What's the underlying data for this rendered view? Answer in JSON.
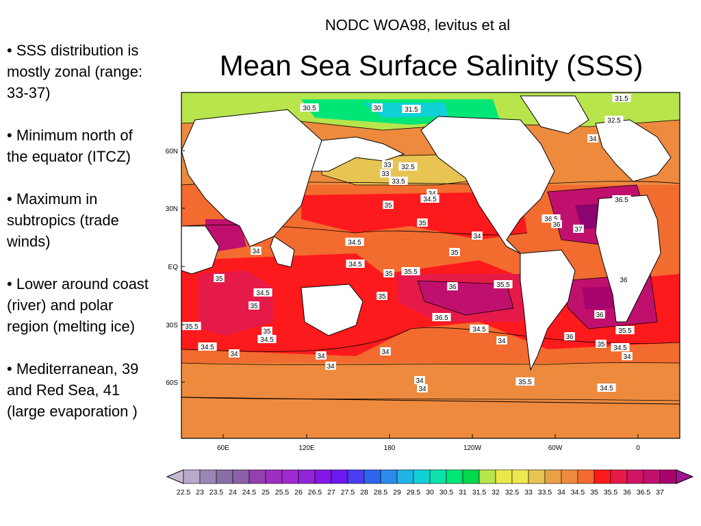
{
  "source": "NODC WOA98, levitus et al",
  "title": "Mean Sea Surface Salinity (SSS)",
  "bullets": [
    "• SSS distribution is mostly zonal (range: 33-37)",
    "• Minimum north of the equator (ITCZ)",
    "• Maximum in subtropics (trade winds)",
    "• Lower around coast (river) and polar region (melting ice)",
    " • Mediterranean, 39 and Red Sea, 41 (large evaporation )"
  ],
  "map": {
    "lat_ticks": [
      "60N",
      "30N",
      "EQ",
      "30S",
      "60S"
    ],
    "lon_ticks": [
      "60E",
      "120E",
      "180",
      "120W",
      "60W",
      "0"
    ],
    "contour_labels": [
      "31.5",
      "30.5",
      "30",
      "31.5",
      "32.5",
      "34",
      "33",
      "32.5",
      "33",
      "33.5",
      "34",
      "34.5",
      "35",
      "35",
      "34",
      "34.5",
      "35",
      "36.5",
      "36",
      "37",
      "36.5",
      "34",
      "34.5",
      "35",
      "35.5",
      "36",
      "35.5",
      "36",
      "35",
      "34.5",
      "35",
      "35",
      "36",
      "36.5",
      "35.5",
      "35.5",
      "35",
      "34.5",
      "34",
      "34.5",
      "34.5",
      "34",
      "36",
      "35",
      "34.5",
      "34",
      "34",
      "34",
      "34",
      "34",
      "34",
      "35.5",
      "34.5"
    ]
  },
  "colorbar": {
    "labels": [
      "22.5",
      "23",
      "23.5",
      "24",
      "24.5",
      "25",
      "25.5",
      "26",
      "26.5",
      "27",
      "27.5",
      "28",
      "28.5",
      "29",
      "29.5",
      "30",
      "30.5",
      "31",
      "31.5",
      "32",
      "32.5",
      "33",
      "33.5",
      "34",
      "34.5",
      "35",
      "35.5",
      "36",
      "36.5",
      "37"
    ],
    "colors": [
      "#b9a9c9",
      "#9c86b4",
      "#8a6ea6",
      "#8d5fa6",
      "#9440b0",
      "#9c2fc0",
      "#a02ad1",
      "#9126d9",
      "#8417e6",
      "#6a1aee",
      "#4b3df0",
      "#2f66ef",
      "#2c8bea",
      "#1fb4e4",
      "#10d1d6",
      "#0fe0ae",
      "#00e676",
      "#00d84a",
      "#b8e44c",
      "#e9e84b",
      "#ece84f",
      "#e8c452",
      "#e9a146",
      "#ee8a3e",
      "#f26b2f",
      "#fd1a1c",
      "#e51a48",
      "#d11562",
      "#c0106e",
      "#a8046e"
    ],
    "low_end_color": "#c6b9d4",
    "high_end_color": "#a01592"
  },
  "ocean_colors": {
    "s33": "#e8c452",
    "s34": "#ee8a3e",
    "s345": "#f26b2f",
    "s35": "#fd1a1c",
    "s355": "#e51a48",
    "s36": "#c0106e",
    "s365": "#a8046e",
    "s37": "#8c0470",
    "s305": "#00e676",
    "s30": "#10d1d6",
    "s315": "#b8e44c",
    "land": "#ffffff"
  }
}
